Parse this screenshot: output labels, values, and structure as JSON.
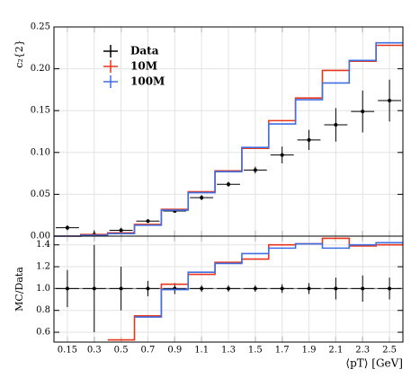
{
  "chart_data": [
    {
      "type": "step",
      "ylabel": "c₂{2}",
      "ylim": [
        0,
        0.25
      ],
      "yticks": [
        {
          "value": 0,
          "label": "0.00"
        },
        0.05,
        {
          "value": 0.1,
          "label": "0.10"
        },
        0.15,
        {
          "value": 0.2,
          "label": "0.20"
        },
        0.25
      ],
      "grid": true,
      "legend": "upper-left",
      "series": [
        {
          "name": "Data",
          "color": "#000000",
          "style": "points",
          "values": [
            0.01,
            0.002,
            0.007,
            0.018,
            0.03,
            0.046,
            0.062,
            0.079,
            0.097,
            0.115,
            0.133,
            0.149,
            0.162
          ],
          "errors": [
            0.003,
            0.005,
            0.003,
            0.002,
            0.002,
            0.003,
            0.003,
            0.004,
            0.01,
            0.012,
            0.02,
            0.025,
            0.025
          ]
        },
        {
          "name": "10M",
          "color": "#e8361c",
          "style": "step",
          "values": [
            0.0,
            0.002,
            0.004,
            0.014,
            0.032,
            0.053,
            0.078,
            0.105,
            0.138,
            0.165,
            0.198,
            0.209,
            0.228
          ]
        },
        {
          "name": "100M",
          "color": "#3f6fe0",
          "style": "step",
          "values": [
            0.0,
            0.001,
            0.003,
            0.013,
            0.031,
            0.052,
            0.077,
            0.106,
            0.134,
            0.163,
            0.183,
            0.21,
            0.231
          ]
        }
      ]
    },
    {
      "type": "step",
      "ylabel": "MC/Data",
      "xlabel": "⟨pT⟩ [GeV]",
      "categories": [
        "0.15",
        "0.3",
        "0.5",
        "0.7",
        "0.9",
        "1.1",
        "1.3",
        "1.5",
        "1.7",
        "1.9",
        "2.1",
        "2.3",
        "2.5"
      ],
      "ylim": [
        0.51,
        1.48
      ],
      "yticks": [
        0.6,
        0.8,
        {
          "value": 1,
          "label": "1.0"
        },
        1.2,
        1.4
      ],
      "grid": true,
      "series": [
        {
          "color": "#000000",
          "style": "points",
          "values": [
            1,
            1,
            1,
            1,
            1,
            1,
            1,
            1,
            1,
            1,
            1,
            1,
            1
          ],
          "errors": [
            0.17,
            0.4,
            0.2,
            0.07,
            0.05,
            0.03,
            0.03,
            0.03,
            0.04,
            0.05,
            0.1,
            0.12,
            0.1
          ]
        },
        {
          "color": "#e8361c",
          "style": "step",
          "values": [
            null,
            null,
            0.53,
            0.75,
            1.04,
            1.13,
            1.24,
            1.27,
            1.4,
            1.41,
            1.46,
            1.39,
            1.4
          ]
        },
        {
          "color": "#3f6fe0",
          "style": "step",
          "values": [
            null,
            null,
            null,
            0.74,
            0.99,
            1.15,
            1.23,
            1.32,
            1.37,
            1.41,
            1.37,
            1.4,
            1.42
          ]
        }
      ]
    }
  ]
}
